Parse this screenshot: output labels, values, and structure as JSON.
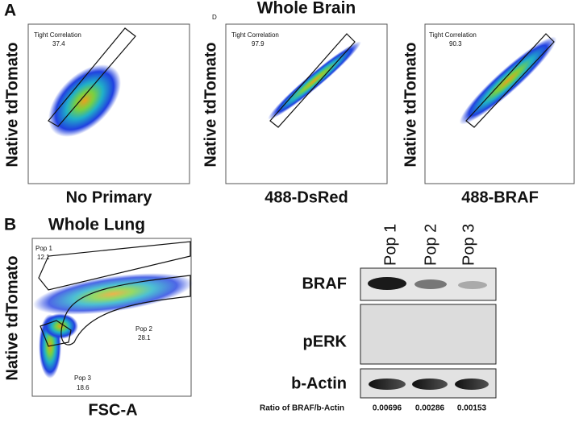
{
  "panel_a": {
    "label": "A",
    "title": "Whole Brain",
    "sublabel": "D",
    "plots": [
      {
        "y_label": "Native tdTomato",
        "x_label": "No Primary",
        "gate_name": "Tight Correlation",
        "gate_value": "37.4"
      },
      {
        "y_label": "Native tdTomato",
        "x_label": "488-DsRed",
        "gate_name": "Tight Correlation",
        "gate_value": "97.9"
      },
      {
        "y_label": "Native tdTomato",
        "x_label": "488-BRAF",
        "gate_name": "Tight Correlation",
        "gate_value": "90.3"
      }
    ]
  },
  "panel_b": {
    "label": "B",
    "title": "Whole Lung",
    "y_label": "Native tdTomato",
    "x_label": "FSC-A",
    "gates": [
      {
        "name": "Pop 1",
        "value": "12.1"
      },
      {
        "name": "Pop 2",
        "value": "28.1"
      },
      {
        "name": "Pop 3",
        "value": "18.6"
      }
    ]
  },
  "western_blot": {
    "lanes": [
      "Pop 1",
      "Pop 2",
      "Pop 3"
    ],
    "rows": [
      "BRAF",
      "pERK",
      "b-Actin"
    ],
    "ratio_label": "Ratio of BRAF/b-Actin",
    "ratios": [
      "0.00696",
      "0.00286",
      "0.00153"
    ]
  }
}
